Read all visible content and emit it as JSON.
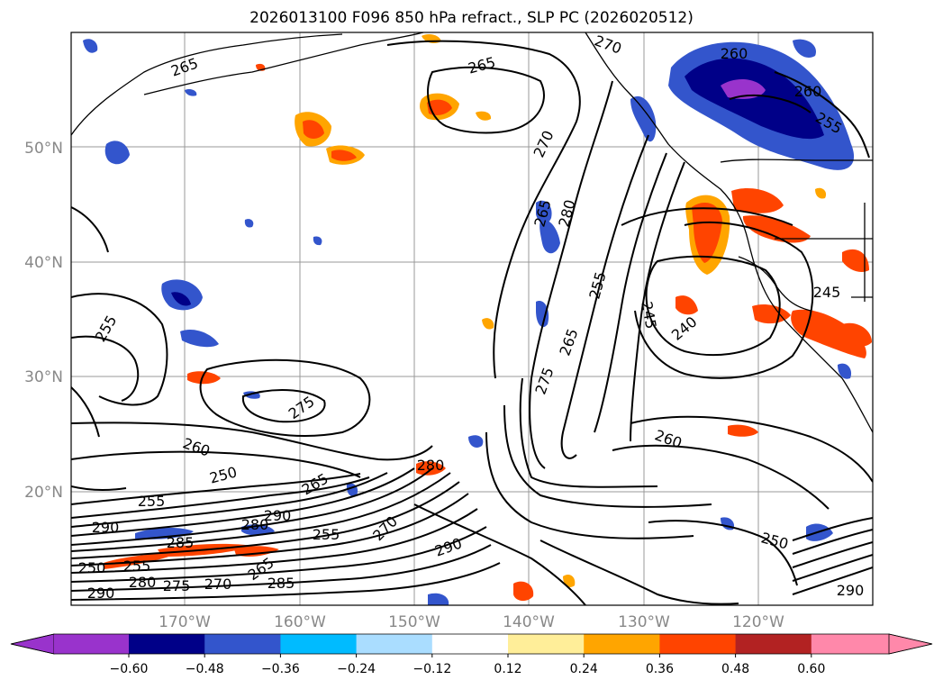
{
  "title": "2026013100 F096 850 hPa refract., SLP PC (2026020512)",
  "map": {
    "lat_labels": [
      "50°N",
      "40°N",
      "30°N",
      "20°N"
    ],
    "lon_labels": [
      "170°W",
      "160°W",
      "150°W",
      "140°W",
      "130°W",
      "120°W"
    ],
    "contour_labels": [
      "265",
      "265",
      "270",
      "260",
      "260",
      "255",
      "270",
      "265",
      "280",
      "255",
      "245",
      "240",
      "245",
      "255",
      "275",
      "265",
      "275",
      "260",
      "250",
      "260",
      "265",
      "280",
      "255",
      "290",
      "290",
      "280",
      "285",
      "255",
      "270",
      "290",
      "250",
      "255",
      "280",
      "265",
      "270",
      "275",
      "290",
      "250",
      "285",
      "290"
    ]
  },
  "colorbar": {
    "ticks": [
      "−0.60",
      "−0.48",
      "−0.36",
      "−0.24",
      "−0.12",
      "0.12",
      "0.24",
      "0.36",
      "0.48",
      "0.60"
    ],
    "colors": [
      "#9933cc",
      "#000088",
      "#3355cc",
      "#00bbff",
      "#aaddff",
      "#ffffff",
      "#ffee99",
      "#ffa500",
      "#ff4400",
      "#b22222",
      "#ff88aa"
    ]
  }
}
